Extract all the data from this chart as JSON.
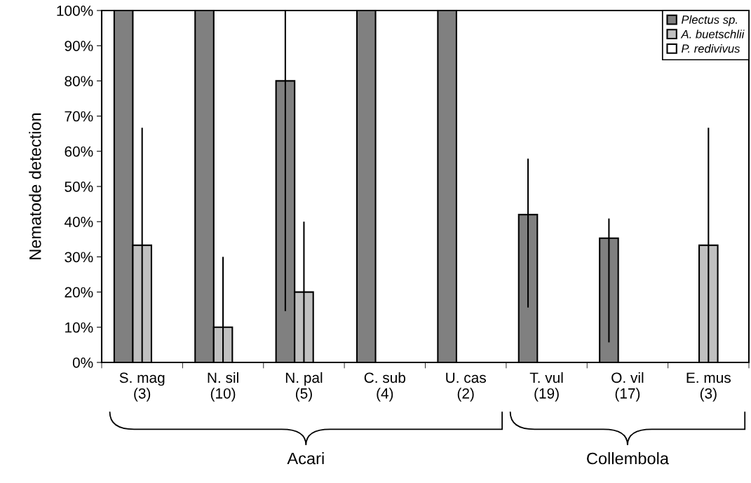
{
  "chart_data": {
    "type": "bar",
    "ylabel": "Nematode detection",
    "categories": [
      "S. mag\n(3)",
      "N. sil\n(10)",
      "N. pal\n(5)",
      "C. sub\n(4)",
      "U. cas\n(2)",
      "T. vul\n(19)",
      "O. vil\n(17)",
      "E. mus\n(3)"
    ],
    "series": [
      {
        "name": "Plectus sp.",
        "color": "#808080",
        "values": [
          100,
          100,
          80,
          100,
          100,
          42,
          35.3,
          null
        ],
        "errors": [
          null,
          null,
          [
            14.6,
            100
          ],
          null,
          null,
          [
            15.6,
            57.9
          ],
          [
            5.7,
            40.9
          ],
          null
        ]
      },
      {
        "name": "A. buetschlii",
        "color": "#c0c0c0",
        "values": [
          33.3,
          10,
          20,
          null,
          null,
          null,
          null,
          33.3
        ],
        "errors": [
          [
            0,
            66.7
          ],
          [
            0,
            30
          ],
          [
            0,
            40
          ],
          null,
          null,
          null,
          null,
          [
            0,
            66.7
          ]
        ]
      },
      {
        "name": "P. redivivus",
        "color": "#ffffff",
        "values": [
          null,
          null,
          null,
          null,
          null,
          null,
          null,
          null
        ]
      }
    ],
    "ylim": [
      0,
      100
    ],
    "yticks": [
      {
        "value": 0,
        "label": "0%"
      },
      {
        "value": 10,
        "label": "10%"
      },
      {
        "value": 20,
        "label": "20%"
      },
      {
        "value": 30,
        "label": "30%"
      },
      {
        "value": 40,
        "label": "40%"
      },
      {
        "value": 50,
        "label": "50%"
      },
      {
        "value": 60,
        "label": "60%"
      },
      {
        "value": 70,
        "label": "70%"
      },
      {
        "value": 80,
        "label": "80%"
      },
      {
        "value": 90,
        "label": "90%"
      },
      {
        "value": 100,
        "label": "100%"
      }
    ],
    "grid": false,
    "legend": "top right",
    "annotations": [
      "Acari",
      "Collembola"
    ]
  }
}
